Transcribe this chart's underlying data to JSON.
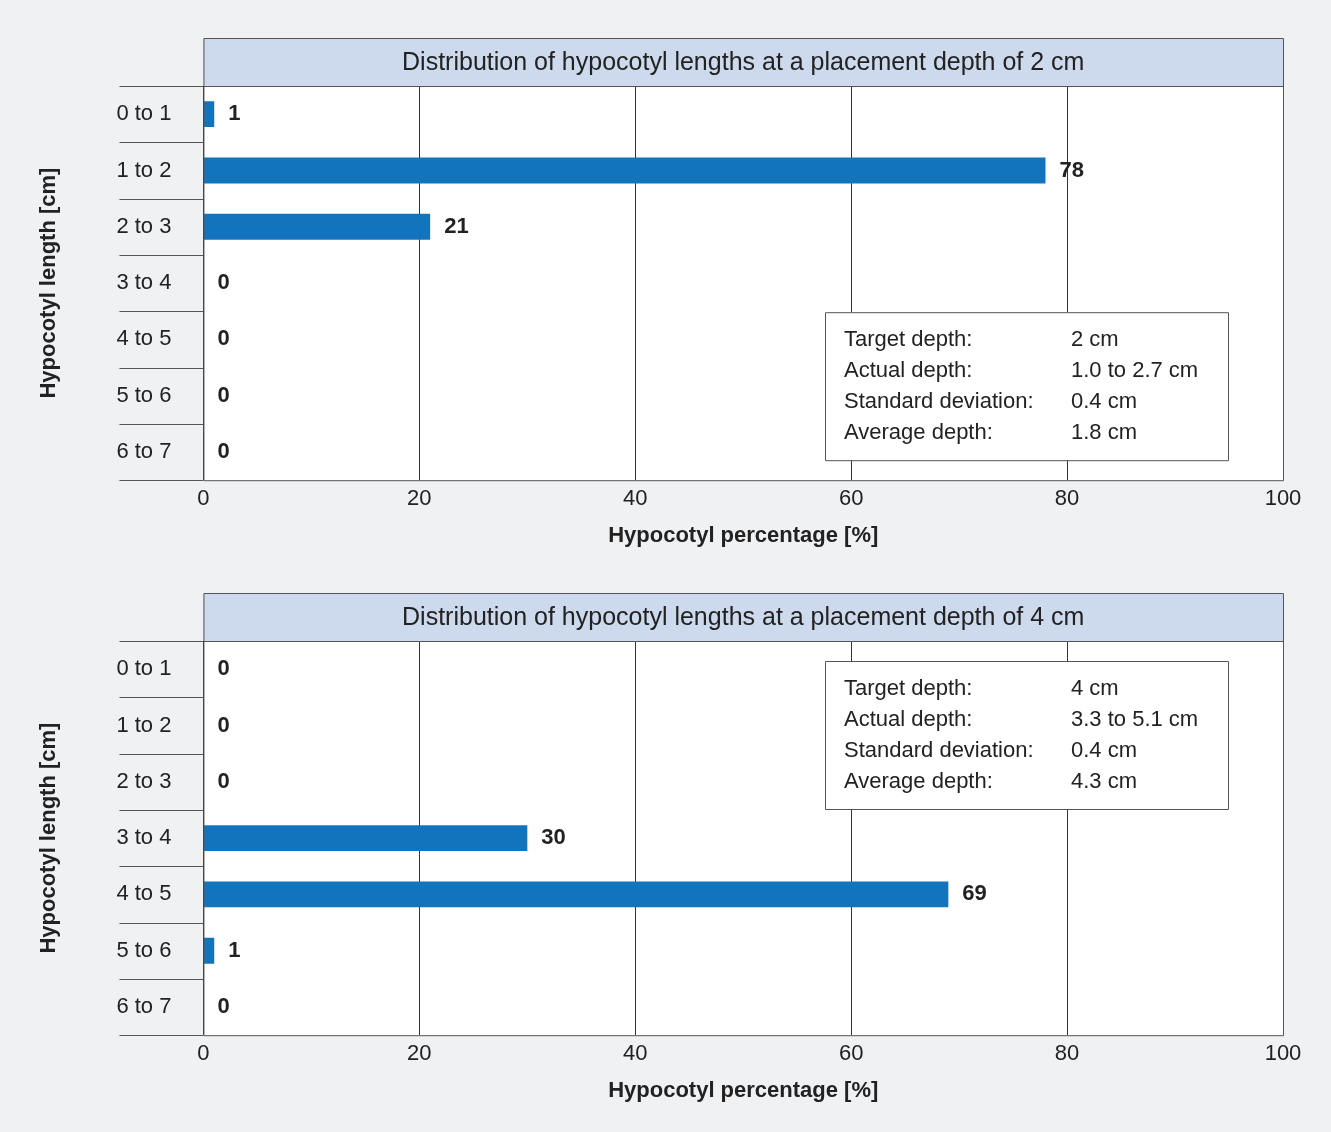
{
  "chart_data": [
    {
      "type": "bar",
      "orientation": "horizontal",
      "title": "Distribution of hypocotyl lengths at a placement depth of 2 cm",
      "xlabel": "Hypocotyl percentage [%]",
      "ylabel": "Hypocotyl length [cm]",
      "categories": [
        "0 to 1",
        "1 to 2",
        "2 to 3",
        "3 to 4",
        "4 to 5",
        "5 to 6",
        "6 to 7"
      ],
      "values": [
        1,
        78,
        21,
        0,
        0,
        0,
        0
      ],
      "color": "#1174bc",
      "xlim": [
        0,
        100
      ],
      "xticks": [
        0,
        20,
        40,
        60,
        80,
        100
      ],
      "grid": true,
      "legend": false,
      "data_labels": true,
      "annotations": [
        "Target depth:",
        "2 cm",
        "Actual depth:",
        "1.0 to 2.7 cm",
        "Standard deviation:",
        "0.4 cm",
        "Average depth:",
        "1.8 cm"
      ]
    },
    {
      "type": "bar",
      "orientation": "horizontal",
      "title": "Distribution of hypocotyl lengths at a placement depth of 4 cm",
      "xlabel": "Hypocotyl percentage [%]",
      "ylabel": "Hypocotyl length [cm]",
      "categories": [
        "0 to 1",
        "1 to 2",
        "2 to 3",
        "3 to 4",
        "4 to 5",
        "5 to 6",
        "6 to 7"
      ],
      "values": [
        0,
        0,
        0,
        30,
        69,
        1,
        0
      ],
      "color": "#1174bc",
      "xlim": [
        0,
        100
      ],
      "xticks": [
        0,
        20,
        40,
        60,
        80,
        100
      ],
      "grid": true,
      "legend": false,
      "data_labels": true,
      "annotations": [
        "Target depth:",
        "4 cm",
        "Actual depth:",
        "3.3 to 5.1 cm",
        "Standard deviation:",
        "0.4 cm",
        "Average depth:",
        "4.3 cm"
      ]
    }
  ]
}
